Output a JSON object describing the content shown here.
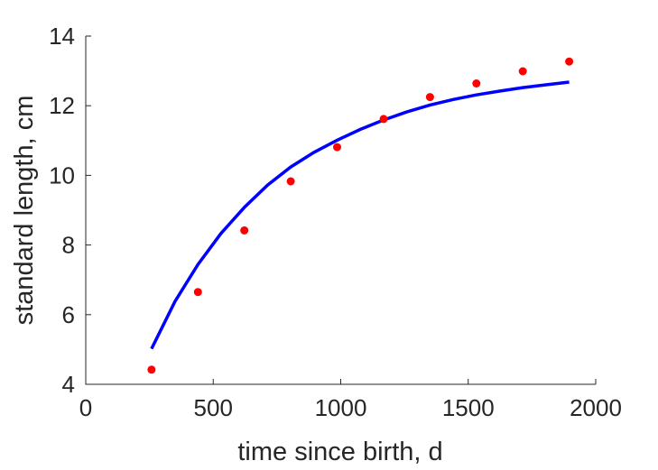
{
  "chart_data": {
    "type": "scatter",
    "xlabel": "time since birth, d",
    "ylabel": "standard length, cm",
    "xlim": [
      0,
      2000
    ],
    "ylim": [
      4,
      14
    ],
    "x_ticks": [
      "0",
      "500",
      "1000",
      "1500",
      "2000"
    ],
    "y_ticks": [
      "4",
      "6",
      "8",
      "10",
      "12",
      "14"
    ],
    "grid": false,
    "series": [
      {
        "kind": "scatter",
        "color": "#ff0000",
        "x": [
          258,
          440,
          622,
          804,
          986,
          1168,
          1350,
          1532,
          1714,
          1896
        ],
        "y": [
          4.42,
          6.65,
          8.42,
          9.83,
          10.81,
          11.62,
          12.25,
          12.64,
          12.99,
          13.27
        ]
      },
      {
        "kind": "line",
        "color": "#0000ff",
        "x": [
          258,
          350,
          440,
          530,
          622,
          713,
          804,
          895,
          986,
          1077,
          1168,
          1259,
          1350,
          1441,
          1532,
          1623,
          1714,
          1805,
          1896
        ],
        "y": [
          5.02,
          6.38,
          7.44,
          8.33,
          9.08,
          9.72,
          10.24,
          10.66,
          11.01,
          11.32,
          11.59,
          11.82,
          12.02,
          12.18,
          12.31,
          12.42,
          12.52,
          12.6,
          12.68
        ]
      }
    ]
  }
}
